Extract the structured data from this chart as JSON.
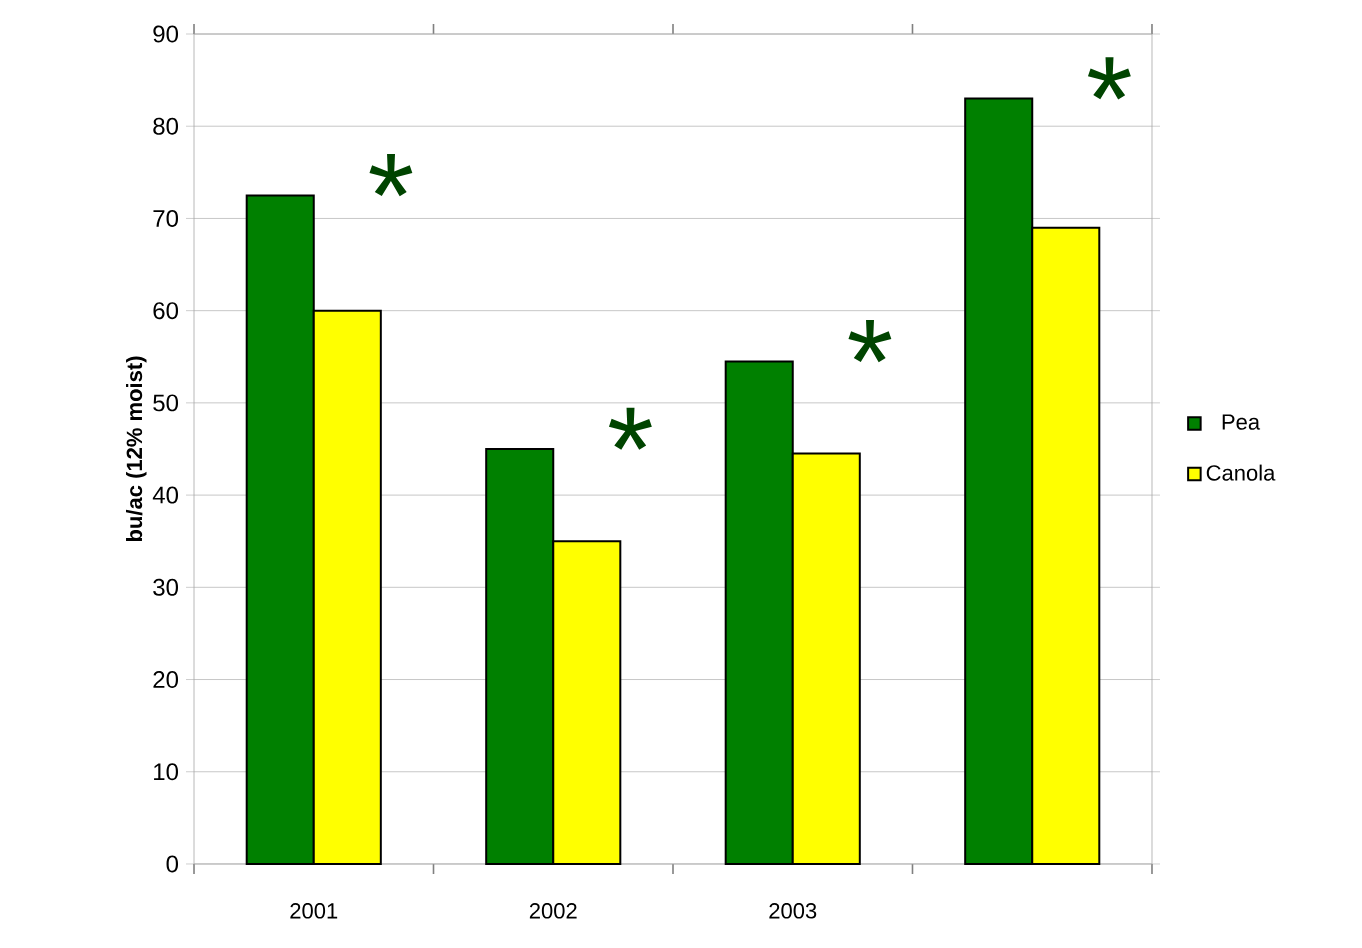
{
  "chart_data": {
    "type": "bar",
    "ylabel": "bu/ac (12% moist)",
    "categories": [
      "2001",
      "2002",
      "2003",
      null
    ],
    "series": [
      {
        "name": "Pea",
        "color": "#008000",
        "values": [
          72.5,
          45,
          54.5,
          83
        ]
      },
      {
        "name": "Canola",
        "color": "#ffff00",
        "values": [
          60,
          35,
          44.5,
          69
        ]
      }
    ],
    "ylim": [
      0,
      90
    ],
    "yticks": [
      0,
      10,
      20,
      30,
      40,
      50,
      60,
      70,
      80,
      90
    ],
    "grid": "y",
    "legend": "right",
    "annotations": [
      "*",
      "*",
      "*",
      "*"
    ]
  }
}
